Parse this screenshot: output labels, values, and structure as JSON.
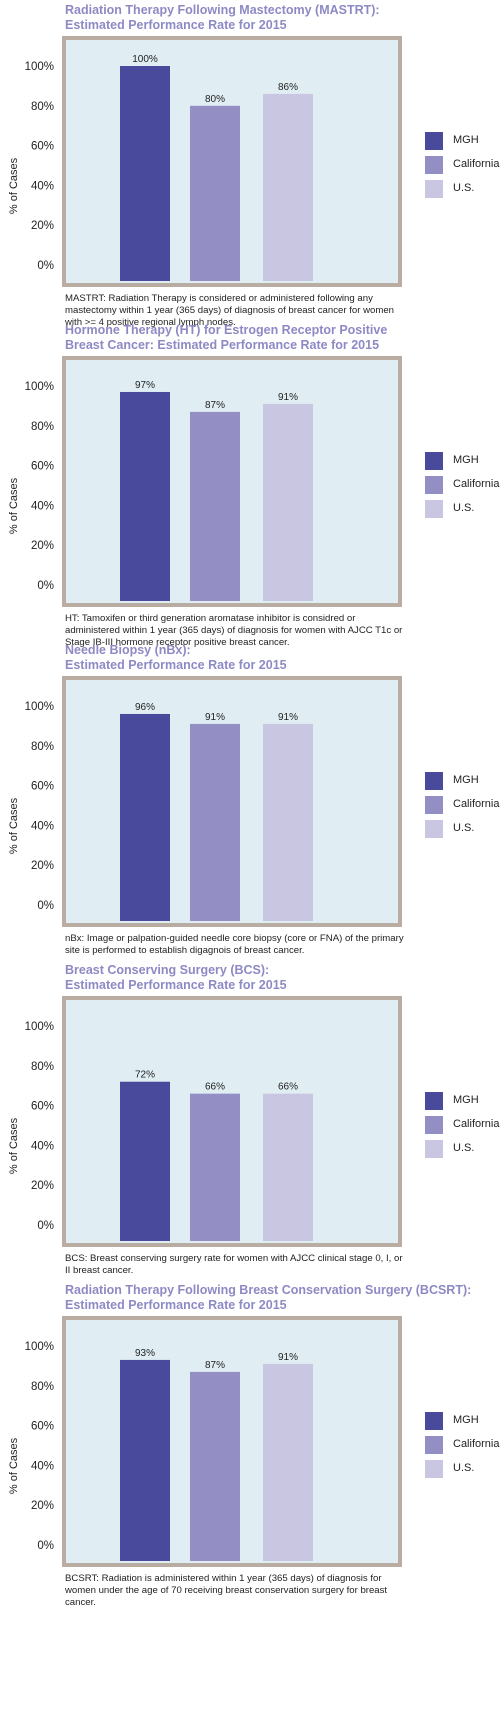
{
  "series_names": [
    "MGH",
    "California",
    "U.S."
  ],
  "colors": {
    "MGH": "#4a4a9c",
    "California": "#938fc5",
    "U.S.": "#c8c6e1",
    "plot_bg": "#e0eef3",
    "plot_frame": "#b8aca3",
    "title": "#8d89c5"
  },
  "ylabel": "% of Cases",
  "chart_data": [
    {
      "type": "bar",
      "title_line1": "Radiation Therapy Following Mastectomy (MASTRT):",
      "title_line2": "Estimated Performance Rate for 2015",
      "categories": [
        "MGH",
        "California",
        "U.S."
      ],
      "values": [
        100,
        80,
        86
      ],
      "value_labels": [
        "100%",
        "80%",
        "86%"
      ],
      "yticks": [
        "0%",
        "20%",
        "40%",
        "60%",
        "80%",
        "100%"
      ],
      "ylim": [
        0,
        100
      ],
      "ylabel": "% of Cases",
      "note": "MASTRT: Radiation Therapy is considered or administered following any mastectomy within 1 year (365 days) of diagnosis of breast cancer for women with >= 4 positive regional lymph nodes."
    },
    {
      "type": "bar",
      "title_line1": "Hormone Therapy (HT) for Estrogen Receptor Positive",
      "title_line2": "Breast Cancer: Estimated Performance Rate for 2015",
      "categories": [
        "MGH",
        "California",
        "U.S."
      ],
      "values": [
        97,
        87,
        91
      ],
      "value_labels": [
        "97%",
        "87%",
        "91%"
      ],
      "yticks": [
        "0%",
        "20%",
        "40%",
        "60%",
        "80%",
        "100%"
      ],
      "ylim": [
        0,
        100
      ],
      "ylabel": "% of Cases",
      "note": "HT: Tamoxifen or third generation aromatase inhibitor is considred or administered within 1 year (365 days) of diagnosis for women with AJCC T1c or Stage IB-III hormone receptor positive breast cancer."
    },
    {
      "type": "bar",
      "title_line1": "Needle Biopsy (nBx):",
      "title_line2": "Estimated Performance Rate for 2015",
      "categories": [
        "MGH",
        "California",
        "U.S."
      ],
      "values": [
        96,
        91,
        91
      ],
      "value_labels": [
        "96%",
        "91%",
        "91%"
      ],
      "yticks": [
        "0%",
        "20%",
        "40%",
        "60%",
        "80%",
        "100%"
      ],
      "ylim": [
        0,
        100
      ],
      "ylabel": "% of Cases",
      "note": "nBx: Image or palpation-guided needle core biopsy (core or FNA) of the primary site is performed to establish digagnois of breast cancer."
    },
    {
      "type": "bar",
      "title_line1": "Breast Conserving Surgery (BCS):",
      "title_line2": "Estimated Performance Rate for 2015",
      "categories": [
        "MGH",
        "California",
        "U.S."
      ],
      "values": [
        72,
        66,
        66
      ],
      "value_labels": [
        "72%",
        "66%",
        "66%"
      ],
      "yticks": [
        "0%",
        "20%",
        "40%",
        "60%",
        "80%",
        "100%"
      ],
      "ylim": [
        0,
        100
      ],
      "ylabel": "% of Cases",
      "note": "BCS: Breast conserving surgery rate for women with AJCC clinical stage 0, I, or II breast cancer."
    },
    {
      "type": "bar",
      "title_line1": "Radiation Therapy Following Breast Conservation Surgery (BCSRT):",
      "title_line2": "Estimated Performance Rate for 2015",
      "categories": [
        "MGH",
        "California",
        "U.S."
      ],
      "values": [
        93,
        87,
        91
      ],
      "value_labels": [
        "93%",
        "87%",
        "91%"
      ],
      "yticks": [
        "0%",
        "20%",
        "40%",
        "60%",
        "80%",
        "100%"
      ],
      "ylim": [
        0,
        100
      ],
      "ylabel": "% of Cases",
      "note": "BCSRT: Radiation is administered within 1 year (365 days) of diagnosis for women under the age of 70 receiving breast conservation surgery for breast cancer."
    }
  ]
}
